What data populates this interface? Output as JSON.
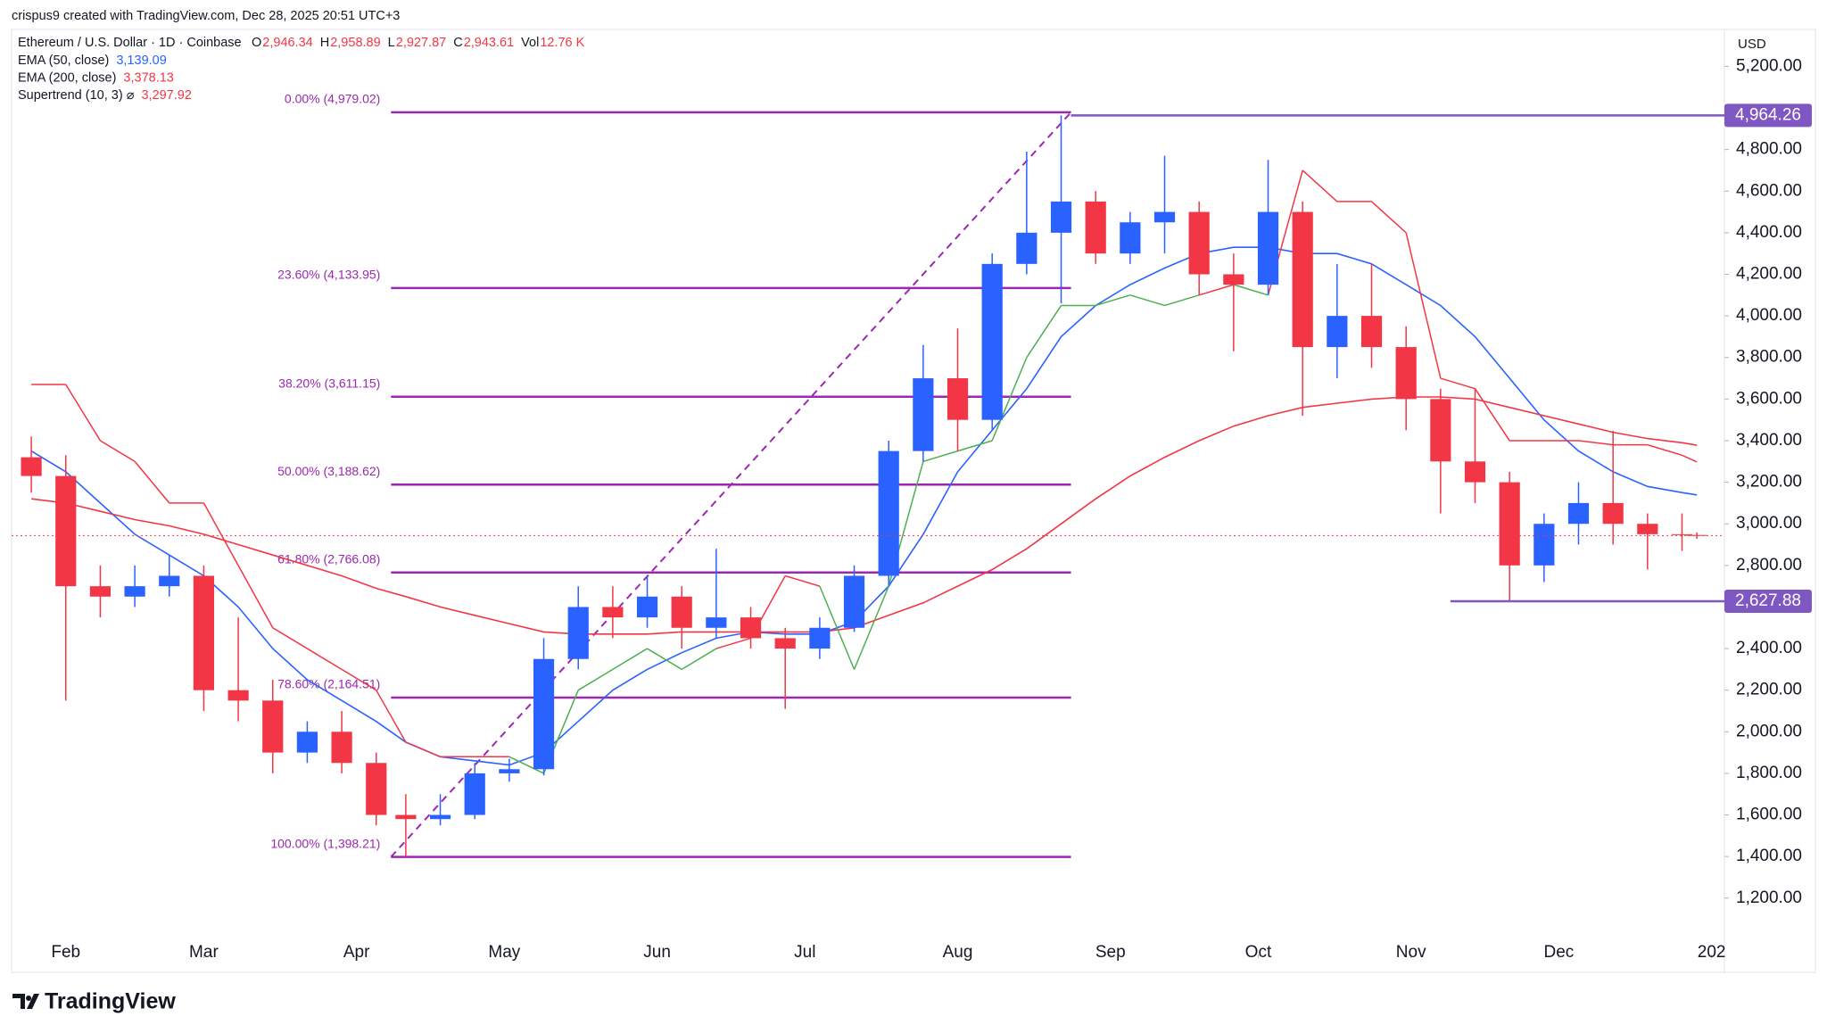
{
  "chart_data": {
    "type": "candlestick",
    "attribution": "crispus9 created with TradingView.com, Dec 28, 2025 20:51 UTC+3",
    "symbol": "Ethereum / U.S. Dollar · 1D · Coinbase",
    "ohlc_legend": [
      {
        "key": "O",
        "label": "2,946.34"
      },
      {
        "key": "H",
        "label": "2,958.89"
      },
      {
        "key": "L",
        "label": "2,927.87"
      },
      {
        "key": "C",
        "label": "2,943.61"
      },
      {
        "key": "Vol",
        "label": "12.76 K"
      }
    ],
    "y_axis_unit": "USD",
    "watermark": "TradingView",
    "up_color": "#2962ff",
    "down_color": "#f23645",
    "x": [
      24,
      31,
      38,
      45,
      52,
      59,
      66,
      73,
      80,
      87,
      94,
      100,
      107,
      114,
      121,
      128,
      135,
      142,
      149,
      156,
      163,
      170,
      177,
      184,
      191,
      198,
      205,
      212,
      219,
      226,
      233,
      240,
      247,
      254,
      261,
      268,
      275,
      282,
      289,
      296,
      303,
      310,
      317,
      324,
      331,
      338,
      345,
      352,
      359,
      362
    ],
    "open": [
      3320,
      3230,
      2700,
      2650,
      2700,
      2750,
      2200,
      2150,
      1900,
      2000,
      1850,
      1600,
      1580,
      1600,
      1800,
      1820,
      2350,
      2600,
      2550,
      2650,
      2500,
      2550,
      2450,
      2400,
      2500,
      2750,
      3350,
      3700,
      3500,
      4250,
      4400,
      4550,
      4300,
      4450,
      4500,
      4200,
      4150,
      4500,
      3850,
      4000,
      3850,
      3600,
      3300,
      3200,
      2800,
      3000,
      3100,
      3000,
      2950,
      2946.34
    ],
    "high": [
      3420,
      3330,
      2800,
      2800,
      2850,
      2800,
      2550,
      2250,
      2050,
      2100,
      1900,
      1700,
      1700,
      1850,
      1870,
      2450,
      2700,
      2700,
      2750,
      2700,
      2880,
      2600,
      2500,
      2550,
      2800,
      3400,
      3860,
      3940,
      4300,
      4790,
      4964.26,
      4600,
      4500,
      4770,
      4550,
      4300,
      4750,
      4550,
      4250,
      4250,
      3950,
      3650,
      3650,
      3250,
      3050,
      3200,
      3447,
      3050,
      3050,
      2958.89
    ],
    "low": [
      3150,
      2150,
      2550,
      2600,
      2650,
      2100,
      2050,
      1800,
      1850,
      1800,
      1550,
      1398.21,
      1550,
      1580,
      1760,
      1790,
      2300,
      2450,
      2500,
      2400,
      2450,
      2400,
      2110,
      2350,
      2480,
      2700,
      3300,
      3350,
      3450,
      4200,
      4060,
      4250,
      4250,
      4300,
      4100,
      3830,
      4100,
      3520,
      3700,
      3750,
      3450,
      3050,
      3100,
      2627.88,
      2720,
      2900,
      2900,
      2780,
      2870,
      2927.87
    ],
    "close": [
      3230,
      2700,
      2650,
      2700,
      2750,
      2200,
      2150,
      1900,
      2000,
      1850,
      1600,
      1580,
      1600,
      1800,
      1820,
      2350,
      2600,
      2550,
      2650,
      2500,
      2550,
      2450,
      2400,
      2500,
      2750,
      3350,
      3700,
      3500,
      4250,
      4400,
      4550,
      4300,
      4450,
      4500,
      4200,
      4150,
      4500,
      3850,
      4000,
      3850,
      3600,
      3300,
      3200,
      2800,
      3000,
      3100,
      3000,
      2950,
      2946.34,
      2943.61
    ],
    "indicators": [
      {
        "name": "EMA (50, close)",
        "value_label": "3,139.09",
        "color": "#2962ff",
        "values": [
          3350,
          3250,
          3100,
          2950,
          2850,
          2750,
          2600,
          2400,
          2250,
          2150,
          2050,
          1950,
          1880,
          1860,
          1840,
          1900,
          2050,
          2200,
          2300,
          2380,
          2450,
          2480,
          2470,
          2470,
          2530,
          2700,
          2950,
          3250,
          3450,
          3650,
          3900,
          4050,
          4150,
          4230,
          4300,
          4330,
          4330,
          4300,
          4300,
          4250,
          4150,
          4050,
          3900,
          3700,
          3500,
          3350,
          3250,
          3180,
          3150,
          3139.09
        ]
      },
      {
        "name": "EMA (200, close)",
        "value_label": "3,378.13",
        "color": "#f23645",
        "values": [
          3120,
          3100,
          3060,
          3020,
          2990,
          2950,
          2900,
          2850,
          2800,
          2750,
          2690,
          2650,
          2600,
          2560,
          2520,
          2480,
          2470,
          2470,
          2470,
          2480,
          2480,
          2480,
          2480,
          2480,
          2500,
          2560,
          2620,
          2700,
          2780,
          2880,
          3000,
          3120,
          3230,
          3320,
          3400,
          3470,
          3520,
          3560,
          3580,
          3600,
          3610,
          3610,
          3600,
          3560,
          3520,
          3480,
          3440,
          3410,
          3390,
          3378.13
        ]
      },
      {
        "name": "Supertrend (10, 3) ⌀",
        "value_label": "3,297.92",
        "color": "#f23645",
        "up_color": "#4caf50",
        "values": [
          3670,
          3670,
          3400,
          3300,
          3100,
          3100,
          2800,
          2500,
          2400,
          2300,
          2200,
          1950,
          1880,
          1880,
          1880,
          1800,
          2200,
          2300,
          2400,
          2300,
          2400,
          2450,
          2750,
          2700,
          2300,
          2700,
          3300,
          3350,
          3400,
          3800,
          4050,
          4050,
          4100,
          4050,
          4100,
          4150,
          4100,
          4700,
          4550,
          4550,
          4400,
          3700,
          3650,
          3400,
          3400,
          3400,
          3380,
          3380,
          3330,
          3297.92
        ]
      }
    ],
    "fib": {
      "color": "#9c27b0",
      "x_range": [
        97,
        235
      ],
      "levels": [
        {
          "value": 4979.02,
          "label": "0.00% (4,979.02)"
        },
        {
          "value": 4133.95,
          "label": "23.60% (4,133.95)"
        },
        {
          "value": 3611.15,
          "label": "38.20% (3,611.15)"
        },
        {
          "value": 3188.62,
          "label": "50.00% (3,188.62)"
        },
        {
          "value": 2766.08,
          "label": "61.80% (2,766.08)"
        },
        {
          "value": 2164.51,
          "label": "78.60% (2,164.51)"
        },
        {
          "value": 1398.21,
          "label": "100.00% (1,398.21)"
        }
      ]
    },
    "price_labels": [
      {
        "value": 4964.26,
        "label": "4,964.26",
        "from_x": 235
      },
      {
        "value": 2627.88,
        "label": "2,627.88",
        "from_x": 312
      }
    ],
    "price_label_color": "#7e57c2",
    "xlim": [
      20,
      367.6
    ],
    "ylim": [
      1014.6,
      5377.6
    ],
    "xticks": [
      {
        "value": 31,
        "label": "Feb"
      },
      {
        "value": 59,
        "label": "Mar"
      },
      {
        "value": 90,
        "label": "Apr"
      },
      {
        "value": 120,
        "label": "May"
      },
      {
        "value": 151,
        "label": "Jun"
      },
      {
        "value": 181,
        "label": "Jul"
      },
      {
        "value": 212,
        "label": "Aug"
      },
      {
        "value": 243,
        "label": "Sep"
      },
      {
        "value": 273,
        "label": "Oct"
      },
      {
        "value": 304,
        "label": "Nov"
      },
      {
        "value": 334,
        "label": "Dec"
      },
      {
        "value": 365,
        "label": "202"
      }
    ],
    "yticks": [
      {
        "value": 1200,
        "label": "1,200.00"
      },
      {
        "value": 1400,
        "label": "1,400.00"
      },
      {
        "value": 1600,
        "label": "1,600.00"
      },
      {
        "value": 1800,
        "label": "1,800.00"
      },
      {
        "value": 2000,
        "label": "2,000.00"
      },
      {
        "value": 2200,
        "label": "2,200.00"
      },
      {
        "value": 2400,
        "label": "2,400.00"
      },
      {
        "value": 2800,
        "label": "2,800.00"
      },
      {
        "value": 3000,
        "label": "3,000.00"
      },
      {
        "value": 3200,
        "label": "3,200.00"
      },
      {
        "value": 3400,
        "label": "3,400.00"
      },
      {
        "value": 3600,
        "label": "3,600.00"
      },
      {
        "value": 3800,
        "label": "3,800.00"
      },
      {
        "value": 4000,
        "label": "4,000.00"
      },
      {
        "value": 4200,
        "label": "4,200.00"
      },
      {
        "value": 4400,
        "label": "4,400.00"
      },
      {
        "value": 4600,
        "label": "4,600.00"
      },
      {
        "value": 4800,
        "label": "4,800.00"
      },
      {
        "value": 5200,
        "label": "5,200.00"
      }
    ]
  }
}
